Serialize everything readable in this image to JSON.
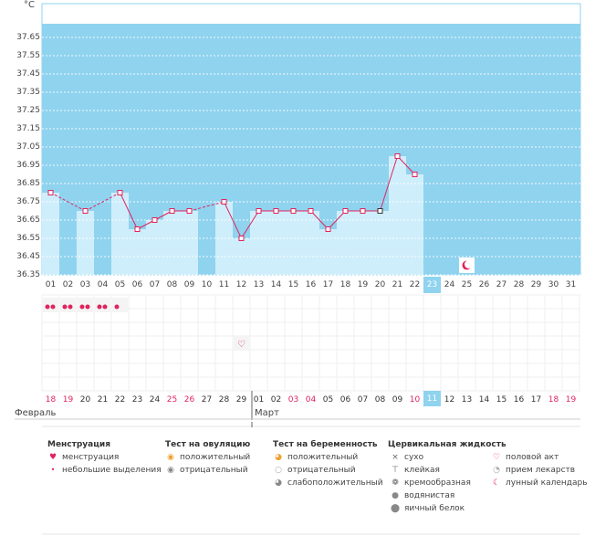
{
  "chart_data": {
    "type": "bar",
    "unit": "°C",
    "ylim": [
      36.35,
      37.75
    ],
    "yticks": [
      "37.65",
      "37.55",
      "37.45",
      "37.35",
      "37.25",
      "37.15",
      "37.05",
      "36.95",
      "36.85",
      "36.75",
      "36.65",
      "36.55",
      "36.45",
      "36.35"
    ],
    "days": [
      "01",
      "02",
      "03",
      "04",
      "05",
      "06",
      "07",
      "08",
      "09",
      "10",
      "11",
      "12",
      "13",
      "14",
      "15",
      "16",
      "17",
      "18",
      "19",
      "20",
      "21",
      "22",
      "23",
      "24",
      "25",
      "26",
      "27",
      "28",
      "29",
      "30",
      "31"
    ],
    "temperatures": [
      36.8,
      null,
      36.7,
      null,
      36.8,
      36.6,
      36.65,
      36.7,
      36.7,
      null,
      36.75,
      36.55,
      36.7,
      36.7,
      36.7,
      36.7,
      36.6,
      36.7,
      36.7,
      36.7,
      37.0,
      36.9,
      null,
      null,
      null,
      null,
      null,
      null,
      null,
      null,
      null
    ],
    "today_index": 22,
    "grid": true,
    "colors": {
      "fill": "#8fd3ef",
      "bar": "#cfeefb",
      "line": "#e0245e",
      "point": "#e0245e"
    }
  },
  "calendar": {
    "dates": [
      "18",
      "19",
      "20",
      "21",
      "22",
      "23",
      "24",
      "25",
      "26",
      "27",
      "28",
      "29",
      "01",
      "02",
      "03",
      "04",
      "05",
      "06",
      "07",
      "08",
      "09",
      "10",
      "11",
      "12",
      "13",
      "14",
      "15",
      "16",
      "17",
      "18",
      "19"
    ],
    "red_indices": [
      0,
      1,
      7,
      8,
      14,
      15,
      21,
      29,
      30
    ],
    "months": [
      "Февраль",
      "Март"
    ]
  },
  "legend": {
    "menstruation": {
      "title": "Менструация",
      "items": [
        "менструация",
        "небольшие выделения"
      ]
    },
    "ovulation": {
      "title": "Тест на овуляцию",
      "items": [
        "положительный",
        "отрицательный"
      ]
    },
    "pregnancy": {
      "title": "Тест на беременность",
      "items": [
        "положительный",
        "отрицательный",
        "слабоположительный"
      ]
    },
    "cervical": {
      "title": "Цервикальная жидкость",
      "items": [
        "сухо",
        "клейкая",
        "кремообразная",
        "водянистая",
        "яичный белок"
      ]
    },
    "other": {
      "items": [
        "половой акт",
        "прием лекарств",
        "лунный календарь"
      ]
    }
  }
}
